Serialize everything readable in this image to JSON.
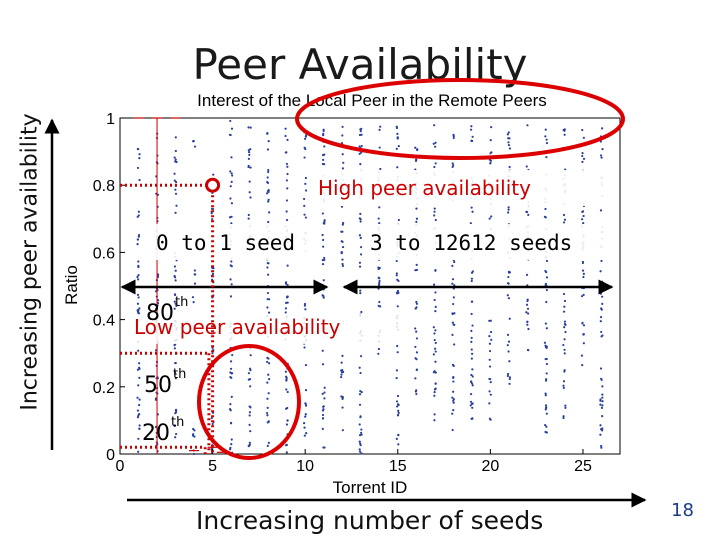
{
  "slide": {
    "title": "Peer Availability",
    "left_arrow_label": "Increasing peer availability",
    "bottom_arrow_label": "Increasing number of seeds",
    "page_number": "18"
  },
  "chart_data": {
    "type": "scatter",
    "title": "Interest of the Local Peer in the Remote Peers",
    "xlabel": "Torrent ID",
    "ylabel": "Ratio",
    "xlim": [
      0,
      27
    ],
    "ylim": [
      0,
      1
    ],
    "xticks": [
      0,
      5,
      10,
      15,
      20,
      25
    ],
    "yticks": [
      0,
      0.2,
      0.4,
      0.6,
      0.8,
      1
    ],
    "columns": [
      {
        "x": 1,
        "bands": [
          [
            0.0,
            0.95
          ]
        ]
      },
      {
        "x": 2,
        "bands": [
          [
            0.0,
            0.98
          ]
        ]
      },
      {
        "x": 3,
        "bands": [
          [
            0.0,
            0.98
          ]
        ]
      },
      {
        "x": 4,
        "bands": [
          [
            0.0,
            0.12
          ],
          [
            0.45,
            0.55
          ],
          [
            0.9,
            0.95
          ]
        ]
      },
      {
        "x": 5,
        "bands": [
          [
            0.0,
            0.18
          ],
          [
            0.3,
            0.85
          ]
        ]
      },
      {
        "x": 6,
        "bands": [
          [
            0.0,
            1.0
          ]
        ]
      },
      {
        "x": 7,
        "bands": [
          [
            0.0,
            0.35
          ],
          [
            0.6,
            0.98
          ]
        ]
      },
      {
        "x": 8,
        "bands": [
          [
            0.0,
            0.98
          ]
        ]
      },
      {
        "x": 9,
        "bands": [
          [
            0.0,
            0.98
          ]
        ]
      },
      {
        "x": 10,
        "bands": [
          [
            0.05,
            0.45
          ],
          [
            0.6,
            0.98
          ]
        ]
      },
      {
        "x": 11,
        "bands": [
          [
            0.0,
            0.98
          ]
        ]
      },
      {
        "x": 12,
        "bands": [
          [
            0.05,
            0.3
          ],
          [
            0.55,
            0.98
          ]
        ]
      },
      {
        "x": 13,
        "bands": [
          [
            0.0,
            0.98
          ]
        ]
      },
      {
        "x": 14,
        "bands": [
          [
            0.25,
            0.98
          ]
        ]
      },
      {
        "x": 15,
        "bands": [
          [
            0.0,
            0.98
          ]
        ]
      },
      {
        "x": 16,
        "bands": [
          [
            0.15,
            0.98
          ]
        ]
      },
      {
        "x": 17,
        "bands": [
          [
            0.1,
            0.98
          ]
        ]
      },
      {
        "x": 18,
        "bands": [
          [
            0.05,
            0.6
          ],
          [
            0.75,
            0.98
          ]
        ]
      },
      {
        "x": 19,
        "bands": [
          [
            0.1,
            0.98
          ]
        ]
      },
      {
        "x": 20,
        "bands": [
          [
            0.1,
            0.4
          ],
          [
            0.6,
            0.98
          ]
        ]
      },
      {
        "x": 21,
        "bands": [
          [
            0.2,
            0.98
          ]
        ]
      },
      {
        "x": 22,
        "bands": [
          [
            0.3,
            0.98
          ]
        ]
      },
      {
        "x": 23,
        "bands": [
          [
            0.0,
            0.98
          ]
        ]
      },
      {
        "x": 24,
        "bands": [
          [
            0.1,
            0.5
          ],
          [
            0.65,
            0.98
          ]
        ]
      },
      {
        "x": 25,
        "bands": [
          [
            0.25,
            0.98
          ]
        ]
      },
      {
        "x": 26,
        "bands": [
          [
            0.0,
            0.98
          ]
        ]
      }
    ],
    "red_points": [
      {
        "x": 1,
        "y": 1.0
      },
      {
        "x": 2,
        "y": 1.0
      },
      {
        "x": 3,
        "y": 1.0
      },
      {
        "x": 4,
        "y": 0.01
      },
      {
        "x": 5,
        "y": 0.02
      },
      {
        "x": 5.5,
        "y": 0.005
      }
    ],
    "red_lines": [
      {
        "x": 2,
        "y0": 0,
        "y1": 1
      }
    ],
    "annotations": {
      "high": "High peer availability",
      "low": "Low peer availability",
      "range_left": "0 to 1 seed",
      "range_right": "3 to 12612 seeds",
      "p80": "80",
      "p50": "50",
      "p20": "20",
      "sup": "th"
    },
    "percentiles": [
      {
        "key": "p80",
        "y": 0.8,
        "x": 5
      },
      {
        "key": "p50",
        "y": 0.3,
        "x": 4.8
      },
      {
        "key": "p20",
        "y": 0.02,
        "x": 4.6
      }
    ],
    "colors": {
      "points": "#2b3fa0",
      "red": "#cc0000",
      "markers": "#8a2be2"
    }
  }
}
